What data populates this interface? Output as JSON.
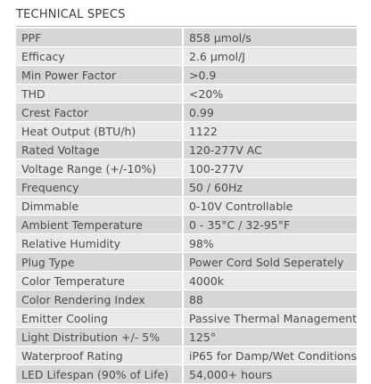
{
  "title": "TECHNICAL SPECS",
  "table": {
    "rows": [
      [
        "PPF",
        "858 μmol/s"
      ],
      [
        "Efficacy",
        "2.6 μmol/J"
      ],
      [
        "Min Power Factor",
        ">0.9"
      ],
      [
        "THD",
        "<20%"
      ],
      [
        "Crest Factor",
        "0.99"
      ],
      [
        "Heat Output (BTU/h)",
        "1122"
      ],
      [
        "Rated Voltage",
        "120-277V AC"
      ],
      [
        "Voltage Range (+/-10%)",
        "100-277V"
      ],
      [
        "Frequency",
        "50 / 60Hz"
      ],
      [
        "Dimmable",
        "0-10V Controllable"
      ],
      [
        "Ambient Temperature",
        "0 - 35°C / 32-95°F"
      ],
      [
        "Relative Humidity",
        "98%"
      ],
      [
        "Plug Type",
        "Power Cord Sold Seperately"
      ],
      [
        "Color Temperature",
        "4000k"
      ],
      [
        "Color Rendering Index",
        "88"
      ],
      [
        "Emitter Cooling",
        "Passive Thermal Management"
      ],
      [
        "Light Distribution +/- 5%",
        "125°"
      ],
      [
        "Waterproof Rating",
        "iP65 for Damp/Wet Conditions"
      ],
      [
        "LED Lifespan (90% of Life)",
        "54,000+ hours"
      ]
    ]
  }
}
